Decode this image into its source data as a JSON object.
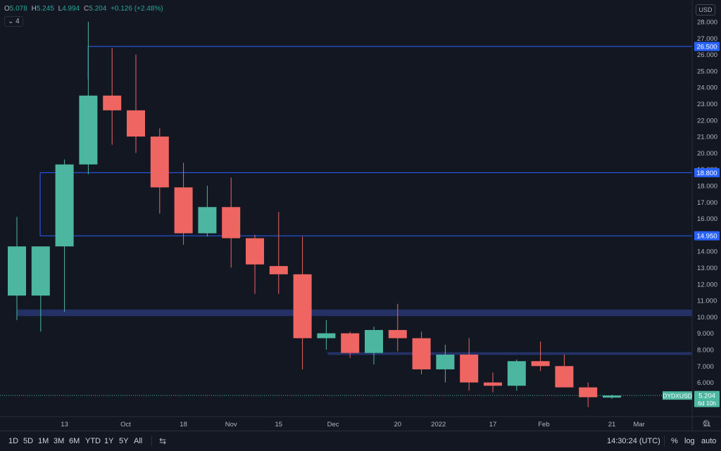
{
  "header": {
    "o_label": "O",
    "o_value": "5.078",
    "h_label": "H",
    "h_value": "5.245",
    "l_label": "L",
    "l_value": "4.994",
    "c_label": "C",
    "c_value": "5.204",
    "change": "+0.126 (+2.48%)",
    "indicators_toggle": "4",
    "currency_button": "USD"
  },
  "chart_data": {
    "type": "candlestick",
    "symbol": "DYDXUSD",
    "interval": "1W",
    "ylim": [
      4.0,
      28.6
    ],
    "y_ticks": [
      "28.000",
      "27.000",
      "26.000",
      "25.000",
      "24.000",
      "23.000",
      "22.000",
      "21.000",
      "20.000",
      "19.000",
      "18.000",
      "17.000",
      "16.000",
      "15.000",
      "14.000",
      "13.000",
      "12.000",
      "11.000",
      "10.000",
      "9.000",
      "8.000",
      "7.000",
      "6.000",
      "5.000"
    ],
    "x_ticks": [
      "13",
      "Oct",
      "18",
      "Nov",
      "15",
      "Dec",
      "20",
      "2022",
      "17",
      "Feb",
      "21",
      "Mar",
      "21"
    ],
    "x_tick_dates": [
      "2021-09-13",
      "2021-10-01",
      "2021-10-18",
      "2021-11-01",
      "2021-11-15",
      "2021-12-01",
      "2021-12-20",
      "2022-01-01",
      "2022-01-17",
      "2022-02-01",
      "2022-02-21",
      "2022-03-01",
      "2022-03-21"
    ],
    "candles": [
      {
        "date": "2021-08-30",
        "o": 11.3,
        "h": 16.1,
        "l": 9.8,
        "c": 14.3
      },
      {
        "date": "2021-09-06",
        "o": 11.3,
        "h": 14.2,
        "l": 9.1,
        "c": 14.3
      },
      {
        "date": "2021-09-13",
        "o": 14.3,
        "h": 19.6,
        "l": 10.3,
        "c": 19.3
      },
      {
        "date": "2021-09-20",
        "o": 19.3,
        "h": 28.0,
        "l": 18.7,
        "c": 23.5
      },
      {
        "date": "2021-09-27",
        "o": 23.5,
        "h": 26.4,
        "l": 20.5,
        "c": 22.6
      },
      {
        "date": "2021-10-04",
        "o": 22.6,
        "h": 26.0,
        "l": 20.0,
        "c": 21.0
      },
      {
        "date": "2021-10-11",
        "o": 21.0,
        "h": 21.5,
        "l": 16.3,
        "c": 17.9
      },
      {
        "date": "2021-10-18",
        "o": 17.9,
        "h": 19.4,
        "l": 14.4,
        "c": 15.1
      },
      {
        "date": "2021-10-25",
        "o": 15.1,
        "h": 18.0,
        "l": 14.9,
        "c": 16.7
      },
      {
        "date": "2021-11-01",
        "o": 16.7,
        "h": 18.5,
        "l": 13.0,
        "c": 14.8
      },
      {
        "date": "2021-11-08",
        "o": 14.8,
        "h": 15.0,
        "l": 11.4,
        "c": 13.2
      },
      {
        "date": "2021-11-15",
        "o": 13.1,
        "h": 16.4,
        "l": 11.4,
        "c": 12.6
      },
      {
        "date": "2021-11-22",
        "o": 12.6,
        "h": 14.9,
        "l": 6.8,
        "c": 8.7
      },
      {
        "date": "2021-11-29",
        "o": 8.7,
        "h": 9.8,
        "l": 8.0,
        "c": 9.0
      },
      {
        "date": "2021-12-06",
        "o": 9.0,
        "h": 9.1,
        "l": 7.5,
        "c": 7.8
      },
      {
        "date": "2021-12-13",
        "o": 7.8,
        "h": 9.4,
        "l": 7.1,
        "c": 9.2
      },
      {
        "date": "2021-12-20",
        "o": 9.2,
        "h": 10.8,
        "l": 7.9,
        "c": 8.7
      },
      {
        "date": "2021-12-27",
        "o": 8.7,
        "h": 9.1,
        "l": 6.5,
        "c": 6.8
      },
      {
        "date": "2022-01-03",
        "o": 6.8,
        "h": 8.3,
        "l": 6.0,
        "c": 7.7
      },
      {
        "date": "2022-01-10",
        "o": 7.7,
        "h": 8.7,
        "l": 5.5,
        "c": 6.0
      },
      {
        "date": "2022-01-17",
        "o": 6.0,
        "h": 6.6,
        "l": 5.4,
        "c": 5.8
      },
      {
        "date": "2022-01-24",
        "o": 5.8,
        "h": 7.4,
        "l": 5.5,
        "c": 7.3
      },
      {
        "date": "2022-01-31",
        "o": 7.3,
        "h": 8.5,
        "l": 6.7,
        "c": 7.0
      },
      {
        "date": "2022-02-07",
        "o": 7.0,
        "h": 7.7,
        "l": 5.7,
        "c": 5.7
      },
      {
        "date": "2022-02-14",
        "o": 5.7,
        "h": 6.0,
        "l": 4.5,
        "c": 5.1
      },
      {
        "date": "2022-02-21",
        "o": 5.078,
        "h": 5.245,
        "l": 4.994,
        "c": 5.204
      }
    ],
    "horizontal_lines": [
      {
        "value": 26.5,
        "label": "26.500"
      },
      {
        "value": 18.8,
        "label": "18.800"
      },
      {
        "value": 14.95,
        "label": "14.950"
      }
    ],
    "zones": [
      {
        "from": 10.05,
        "to": 10.45
      },
      {
        "from": 7.68,
        "to": 7.85
      }
    ],
    "last_price": {
      "symbol": "DYDXUSD",
      "value": "5.204",
      "countdown": "6d 10h"
    },
    "colors": {
      "up": "#4db6a0",
      "down": "#ee6561",
      "line": "#2962ff",
      "zone": "#233166",
      "bg": "#131722",
      "grid": "#1e222d"
    }
  },
  "footer": {
    "timeframes": [
      "1D",
      "5D",
      "1M",
      "3M",
      "6M",
      "YTD",
      "1Y",
      "5Y",
      "All"
    ],
    "time": "14:30:24 (UTC)",
    "percent": "%",
    "log": "log",
    "auto": "auto"
  }
}
